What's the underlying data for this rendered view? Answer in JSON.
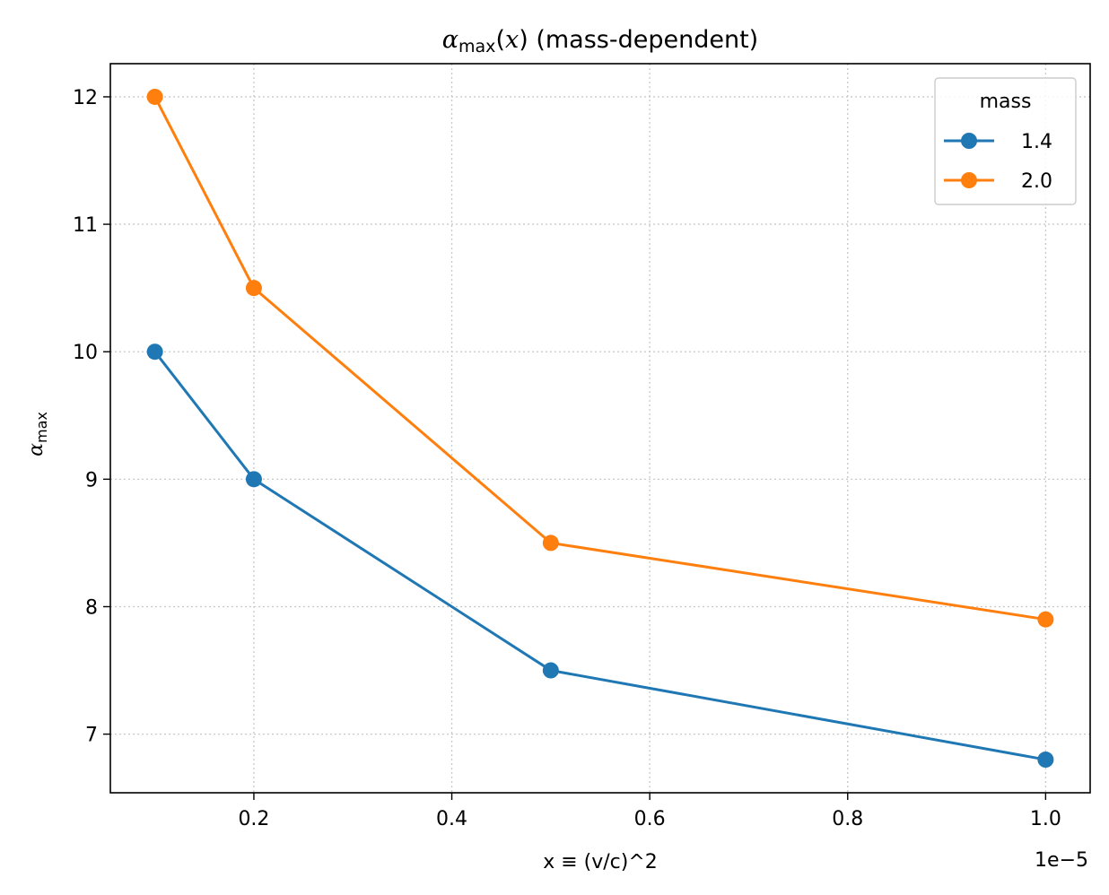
{
  "chart_data": {
    "type": "line",
    "title": {
      "symbol": "α",
      "subscript": "max",
      "open_paren": "(",
      "var": "x",
      "close_paren": ")",
      "rest": " (mass-dependent)"
    },
    "xlabel": "x ≡ (v/c)^2",
    "ylabel": {
      "symbol": "α",
      "subscript": "max"
    },
    "x_offset_label": "1e−5",
    "x_scale_factor": 1e-05,
    "x": [
      1e-06,
      2e-06,
      5e-06,
      1e-05
    ],
    "xlim": [
      5.5e-07,
      1.045e-05
    ],
    "ylim": [
      6.54,
      12.26
    ],
    "x_ticks": [
      {
        "value": 2e-06,
        "label": "0.2"
      },
      {
        "value": 4e-06,
        "label": "0.4"
      },
      {
        "value": 6e-06,
        "label": "0.6"
      },
      {
        "value": 8e-06,
        "label": "0.8"
      },
      {
        "value": 1e-05,
        "label": "1.0"
      }
    ],
    "y_ticks": [
      {
        "value": 7,
        "label": "7"
      },
      {
        "value": 8,
        "label": "8"
      },
      {
        "value": 9,
        "label": "9"
      },
      {
        "value": 10,
        "label": "10"
      },
      {
        "value": 11,
        "label": "11"
      },
      {
        "value": 12,
        "label": "12"
      }
    ],
    "grid": true,
    "legend": {
      "title": "mass",
      "placement": "top-right"
    },
    "series": [
      {
        "name": "1.4",
        "color": "#1f77b4",
        "values": [
          10.0,
          9.0,
          7.5,
          6.8
        ]
      },
      {
        "name": "2.0",
        "color": "#ff7f0e",
        "values": [
          12.0,
          10.5,
          8.5,
          7.9
        ]
      }
    ]
  }
}
